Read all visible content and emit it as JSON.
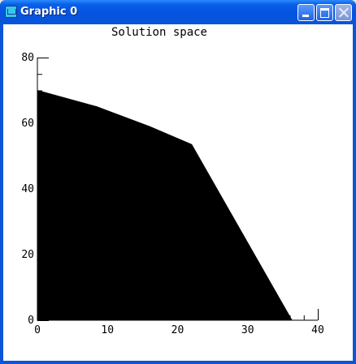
{
  "window": {
    "title": "Graphic 0",
    "controls": [
      "minimize-icon",
      "maximize-icon",
      "close-icon"
    ]
  },
  "chart_data": {
    "type": "area",
    "title": "Solution space",
    "xlabel": "",
    "ylabel": "",
    "xlim": [
      0,
      40
    ],
    "ylim": [
      0,
      80
    ],
    "x_ticks": [
      "0",
      "10",
      "20",
      "30",
      "40"
    ],
    "y_ticks": [
      "0",
      "20",
      "40",
      "60",
      "80"
    ],
    "grid": false,
    "fill_color": "#000000",
    "series": [
      {
        "points": [
          [
            0,
            0
          ],
          [
            0,
            70
          ],
          [
            8.5,
            65
          ],
          [
            16,
            59
          ],
          [
            22,
            53.5
          ],
          [
            36.3,
            0
          ]
        ]
      }
    ]
  }
}
